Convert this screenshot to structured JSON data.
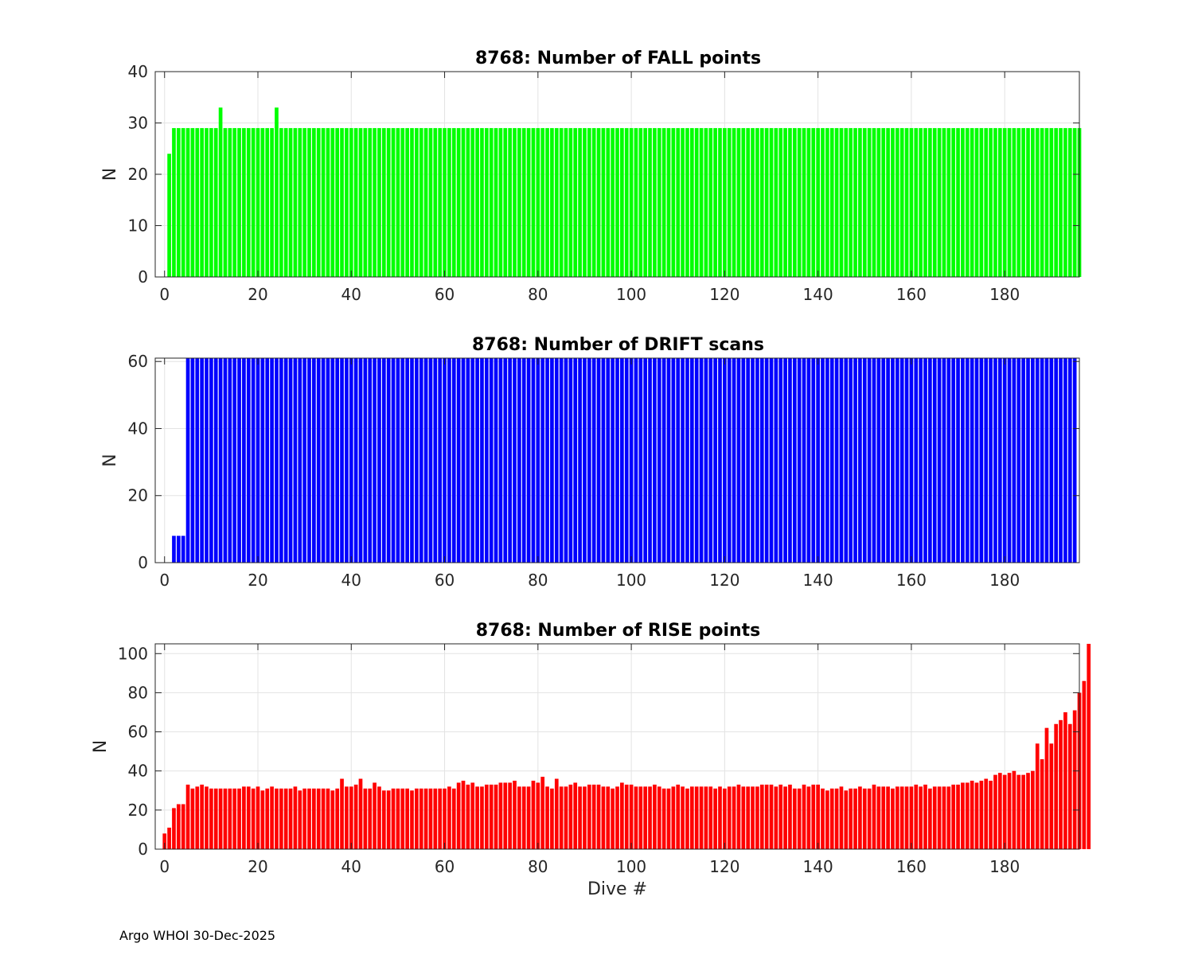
{
  "footer": "Argo WHOI 30-Dec-2025",
  "chart_data": [
    {
      "type": "bar",
      "title": "8768: Number of FALL points",
      "xlabel": "",
      "ylabel": "N",
      "color": "#00ff00",
      "xlim": [
        -2,
        196
      ],
      "ylim": [
        0,
        40
      ],
      "xticks": [
        0,
        20,
        40,
        60,
        80,
        100,
        120,
        140,
        160,
        180
      ],
      "yticks": [
        0,
        10,
        20,
        30,
        40
      ],
      "grid": true,
      "x_start": 1,
      "values": [
        24,
        29,
        29,
        29,
        29,
        29,
        29,
        29,
        29,
        29,
        29,
        33,
        29,
        29,
        29,
        29,
        29,
        29,
        29,
        29,
        29,
        29,
        29,
        33,
        29,
        29,
        29,
        29,
        29,
        29,
        29,
        29,
        29,
        29,
        29,
        29,
        29,
        29,
        29,
        29,
        29,
        29,
        29,
        29,
        29,
        29,
        29,
        29,
        29,
        29,
        29,
        29,
        29,
        29,
        29,
        29,
        29,
        29,
        29,
        29,
        29,
        29,
        29,
        29,
        29,
        29,
        29,
        29,
        29,
        29,
        29,
        29,
        29,
        29,
        29,
        29,
        29,
        29,
        29,
        29,
        29,
        29,
        29,
        29,
        29,
        29,
        29,
        29,
        29,
        29,
        29,
        29,
        29,
        29,
        29,
        29,
        29,
        29,
        29,
        29,
        29,
        29,
        29,
        29,
        29,
        29,
        29,
        29,
        29,
        29,
        29,
        29,
        29,
        29,
        29,
        29,
        29,
        29,
        29,
        29,
        29,
        29,
        29,
        29,
        29,
        29,
        29,
        29,
        29,
        29,
        29,
        29,
        29,
        29,
        29,
        29,
        29,
        29,
        29,
        29,
        29,
        29,
        29,
        29,
        29,
        29,
        29,
        29,
        29,
        29,
        29,
        29,
        29,
        29,
        29,
        29,
        29,
        29,
        29,
        29,
        29,
        29,
        29,
        29,
        29,
        29,
        29,
        29,
        29,
        29,
        29,
        29,
        29,
        29,
        29,
        29,
        29,
        29,
        29,
        29,
        29,
        29,
        29,
        29,
        29,
        29,
        29,
        29,
        29,
        29,
        29,
        29,
        29,
        29,
        29,
        29
      ]
    },
    {
      "type": "bar",
      "title": "8768: Number of DRIFT scans",
      "xlabel": "",
      "ylabel": "N",
      "color": "#0000ff",
      "xlim": [
        -2,
        196
      ],
      "ylim": [
        0,
        61
      ],
      "xticks": [
        0,
        20,
        40,
        60,
        80,
        100,
        120,
        140,
        160,
        180
      ],
      "yticks": [
        0,
        20,
        40,
        60
      ],
      "grid": true,
      "x_start": 1,
      "values": [
        0,
        8,
        8,
        8,
        61,
        61,
        61,
        61,
        61,
        61,
        61,
        61,
        61,
        61,
        61,
        61,
        61,
        61,
        61,
        61,
        61,
        61,
        61,
        61,
        61,
        61,
        61,
        61,
        61,
        61,
        61,
        61,
        61,
        61,
        61,
        61,
        61,
        61,
        61,
        61,
        61,
        61,
        61,
        61,
        61,
        61,
        61,
        61,
        61,
        61,
        61,
        61,
        61,
        61,
        61,
        61,
        61,
        61,
        61,
        61,
        61,
        61,
        61,
        61,
        61,
        61,
        61,
        61,
        61,
        61,
        61,
        61,
        61,
        61,
        61,
        61,
        61,
        61,
        61,
        61,
        61,
        61,
        61,
        61,
        61,
        61,
        61,
        61,
        61,
        61,
        61,
        61,
        61,
        61,
        61,
        61,
        61,
        61,
        61,
        61,
        61,
        61,
        61,
        61,
        61,
        61,
        61,
        61,
        61,
        61,
        61,
        61,
        61,
        61,
        61,
        61,
        61,
        61,
        61,
        61,
        61,
        61,
        61,
        61,
        61,
        61,
        61,
        61,
        61,
        61,
        61,
        61,
        61,
        61,
        61,
        61,
        61,
        61,
        61,
        61,
        61,
        61,
        61,
        61,
        61,
        61,
        61,
        61,
        61,
        61,
        61,
        61,
        61,
        61,
        61,
        61,
        61,
        61,
        61,
        61,
        61,
        61,
        61,
        61,
        61,
        61,
        61,
        61,
        61,
        61,
        61,
        61,
        61,
        61,
        61,
        61,
        61,
        61,
        61,
        61,
        61,
        61,
        61,
        61,
        61,
        61,
        61,
        61,
        61,
        61,
        61,
        61,
        61,
        61,
        61
      ]
    },
    {
      "type": "bar",
      "title": "8768: Number of RISE points",
      "xlabel": "Dive #",
      "ylabel": "N",
      "color": "#ff0000",
      "xlim": [
        -2,
        196
      ],
      "ylim": [
        0,
        105
      ],
      "xticks": [
        0,
        20,
        40,
        60,
        80,
        100,
        120,
        140,
        160,
        180
      ],
      "yticks": [
        0,
        20,
        40,
        60,
        80,
        100
      ],
      "grid": true,
      "x_start": 0,
      "values": [
        8,
        11,
        21,
        23,
        23,
        33,
        31,
        32,
        33,
        32,
        31,
        31,
        31,
        31,
        31,
        31,
        31,
        32,
        32,
        31,
        32,
        30,
        31,
        32,
        31,
        31,
        31,
        31,
        32,
        30,
        31,
        31,
        31,
        31,
        31,
        31,
        30,
        31,
        36,
        32,
        32,
        33,
        36,
        31,
        31,
        34,
        32,
        30,
        30,
        31,
        31,
        31,
        31,
        30,
        31,
        31,
        31,
        31,
        31,
        31,
        31,
        32,
        31,
        34,
        35,
        33,
        34,
        32,
        32,
        33,
        33,
        33,
        34,
        34,
        34,
        35,
        32,
        32,
        32,
        35,
        34,
        37,
        32,
        31,
        36,
        32,
        32,
        33,
        34,
        32,
        32,
        33,
        33,
        33,
        32,
        32,
        31,
        32,
        34,
        33,
        33,
        32,
        32,
        32,
        32,
        33,
        32,
        31,
        31,
        32,
        33,
        32,
        31,
        32,
        32,
        32,
        32,
        32,
        31,
        32,
        31,
        32,
        32,
        33,
        32,
        32,
        32,
        32,
        33,
        33,
        33,
        32,
        33,
        32,
        33,
        31,
        31,
        33,
        32,
        33,
        33,
        31,
        30,
        31,
        31,
        32,
        30,
        31,
        31,
        32,
        31,
        31,
        33,
        32,
        32,
        32,
        31,
        32,
        32,
        32,
        32,
        33,
        32,
        33,
        31,
        32,
        32,
        32,
        32,
        33,
        33,
        34,
        34,
        35,
        34,
        35,
        36,
        35,
        38,
        39,
        38,
        39,
        40,
        38,
        38,
        39,
        40,
        54,
        46,
        62,
        54,
        64,
        66,
        70,
        64,
        71,
        80,
        86,
        105
      ]
    }
  ]
}
